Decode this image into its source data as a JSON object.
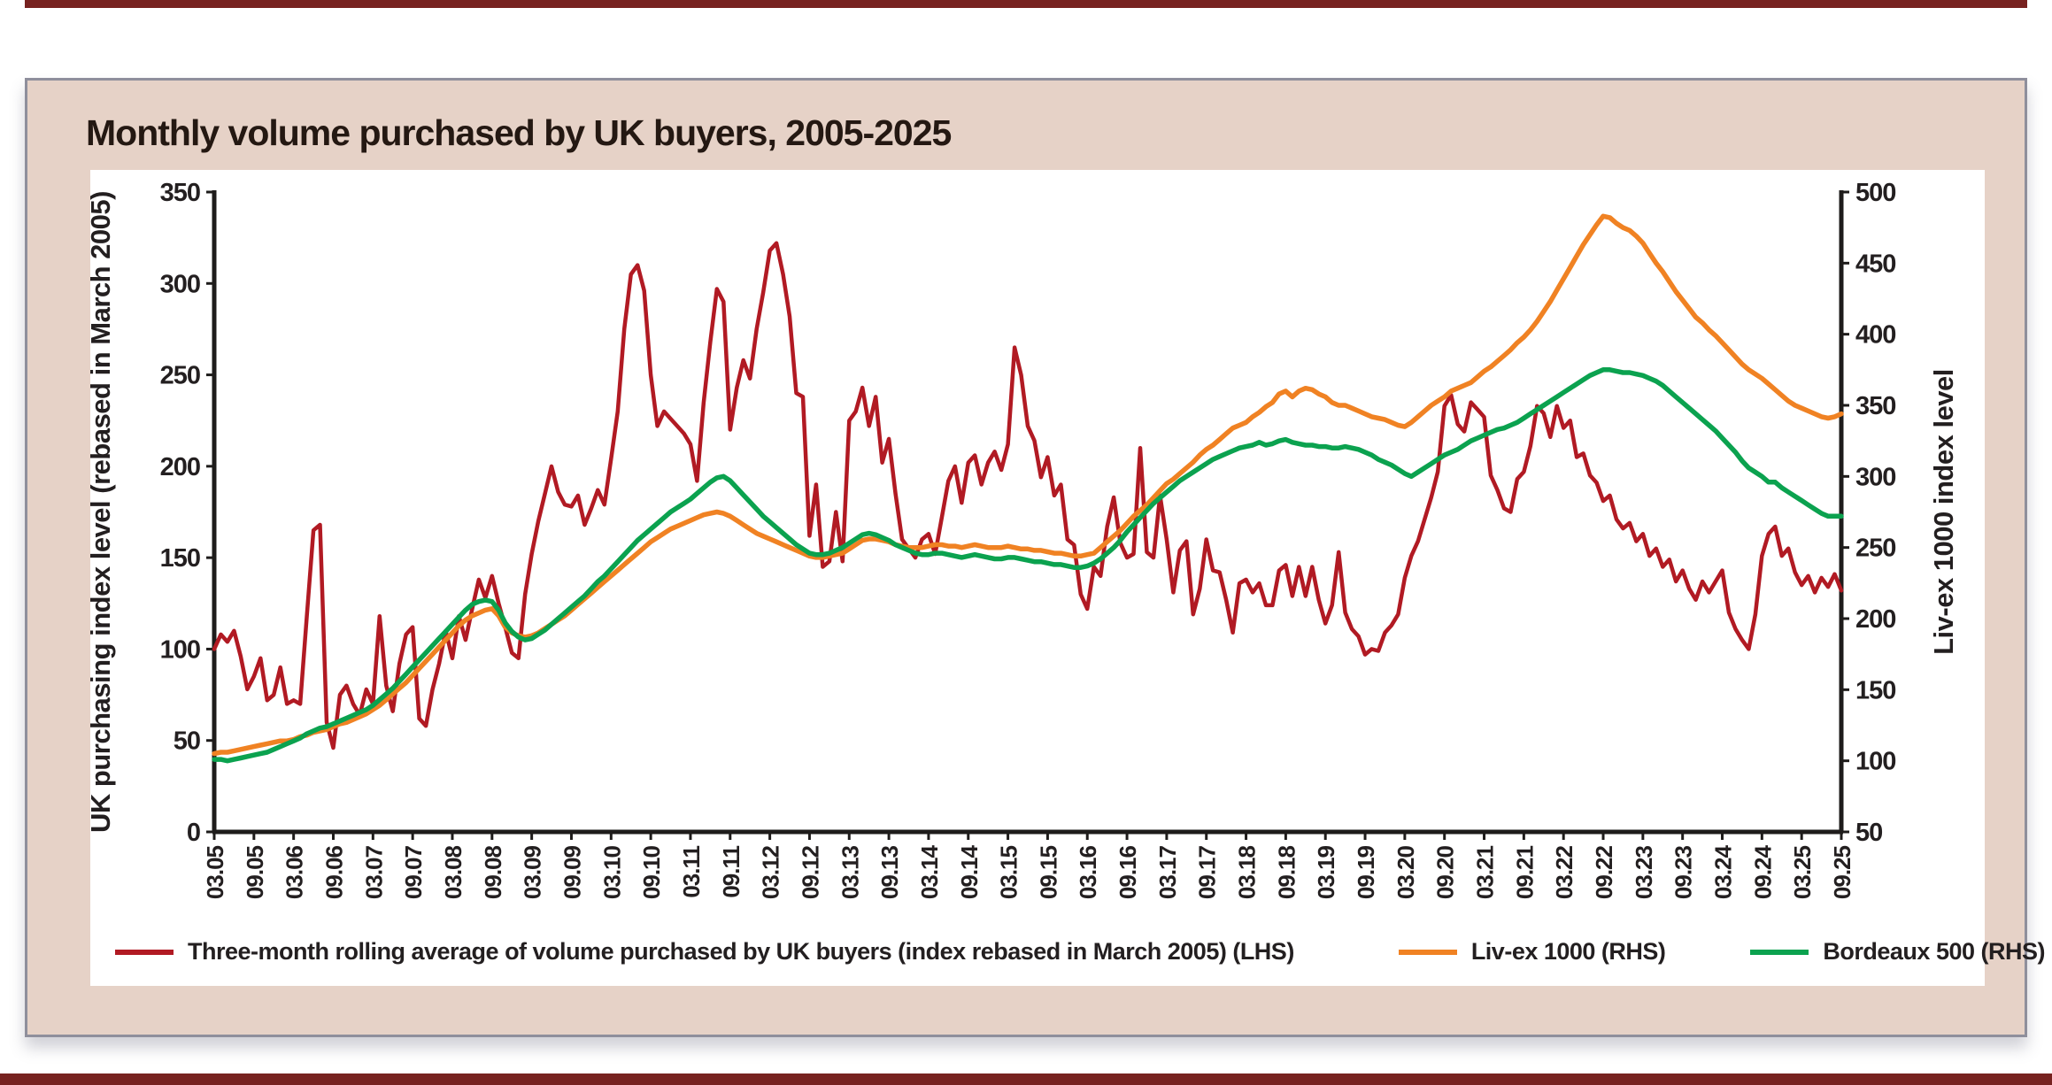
{
  "panel": {
    "title": "Monthly volume purchased by UK buyers, 2005-2025"
  },
  "colors": {
    "accent_rule": "#772220",
    "panel_background": "#e6d2c7",
    "panel_border": "#8f8f9c",
    "axis": "#1e1c1b",
    "series_red": "#b11a23",
    "series_orange": "#f08223",
    "series_green": "#0ba24f"
  },
  "legend": {
    "items": [
      {
        "label": "Three-month rolling average of volume purchased by UK buyers (index rebased in March 2005) (LHS)",
        "color": "#b11a23"
      },
      {
        "label": "Liv-ex 1000 (RHS)",
        "color": "#f08223"
      },
      {
        "label": "Bordeaux 500 (RHS)",
        "color": "#0ba24f"
      }
    ]
  },
  "chart_data": {
    "type": "line",
    "title": "Monthly volume purchased by UK buyers, 2005-2025",
    "x_start": "2005-03",
    "x_interval_months": 1,
    "points_per_series": 247,
    "grid": false,
    "legend_position": "bottom",
    "y_left": {
      "label": "UK purchasing index level (rebased in March 2005)",
      "min": 0,
      "max": 350,
      "ticks": [
        "0",
        "50",
        "100",
        "150",
        "200",
        "250",
        "300",
        "350"
      ]
    },
    "y_right": {
      "label": "Liv-ex 1000 index level",
      "min": 50,
      "max": 500,
      "ticks": [
        "50",
        "100",
        "150",
        "200",
        "250",
        "300",
        "350",
        "400",
        "450",
        "500"
      ]
    },
    "x_tick_labels": [
      "03.05",
      "09.05",
      "03.06",
      "09.06",
      "03.07",
      "09.07",
      "03.08",
      "09.08",
      "03.09",
      "09.09",
      "03.10",
      "09.10",
      "03.11",
      "09.11",
      "03.12",
      "09.12",
      "03.13",
      "09.13",
      "03.14",
      "09.14",
      "03.15",
      "09.15",
      "03.16",
      "09.16",
      "03.17",
      "09.17",
      "03.18",
      "09.18",
      "03.19",
      "09.19",
      "03.20",
      "09.20",
      "03.21",
      "09.21",
      "03.22",
      "09.22",
      "03.23",
      "09.23",
      "03.24",
      "09.24",
      "03.25",
      "09.25"
    ],
    "series": [
      {
        "name": "Three-month rolling average of volume purchased by UK buyers (index rebased in March 2005) (LHS)",
        "axis": "left",
        "color": "#b11a23",
        "values": [
          100,
          108,
          104,
          110,
          96,
          78,
          85,
          95,
          72,
          75,
          90,
          70,
          72,
          70,
          118,
          165,
          168,
          60,
          46,
          75,
          80,
          70,
          64,
          78,
          70,
          118,
          80,
          66,
          92,
          108,
          112,
          62,
          58,
          78,
          92,
          110,
          95,
          118,
          105,
          122,
          138,
          128,
          140,
          125,
          112,
          98,
          95,
          130,
          152,
          170,
          185,
          200,
          186,
          179,
          178,
          184,
          168,
          177,
          187,
          179,
          204,
          230,
          275,
          305,
          310,
          296,
          250,
          222,
          230,
          226,
          222,
          218,
          212,
          192,
          235,
          268,
          297,
          290,
          220,
          243,
          258,
          248,
          275,
          295,
          318,
          322,
          305,
          282,
          240,
          238,
          162,
          190,
          145,
          148,
          175,
          148,
          225,
          230,
          243,
          222,
          238,
          202,
          215,
          185,
          160,
          155,
          150,
          160,
          163,
          152,
          172,
          192,
          200,
          180,
          202,
          206,
          190,
          202,
          208,
          198,
          212,
          265,
          250,
          222,
          214,
          194,
          205,
          184,
          190,
          160,
          157,
          130,
          122,
          145,
          140,
          167,
          183,
          158,
          150,
          152,
          210,
          153,
          150,
          184,
          160,
          131,
          154,
          159,
          119,
          133,
          160,
          143,
          142,
          127,
          109,
          136,
          138,
          131,
          136,
          124,
          124,
          143,
          146,
          129,
          145,
          129,
          145,
          127,
          114,
          124,
          153,
          120,
          111,
          107,
          97,
          100,
          99,
          109,
          113,
          119,
          139,
          151,
          159,
          171,
          183,
          197,
          233,
          239,
          223,
          219,
          235,
          231,
          227,
          195,
          187,
          177,
          175,
          193,
          197,
          211,
          233,
          229,
          216,
          233,
          221,
          225,
          205,
          207,
          195,
          191,
          181,
          184,
          171,
          166,
          169,
          159,
          163,
          151,
          155,
          145,
          149,
          137,
          143,
          133,
          127,
          137,
          131,
          137,
          143,
          120,
          111,
          105,
          100,
          119,
          151,
          163,
          167,
          151,
          155,
          142,
          135,
          140,
          131,
          139,
          134,
          141,
          132
        ]
      },
      {
        "name": "Liv-ex 1000 (RHS)",
        "axis": "right",
        "color": "#f08223",
        "values": [
          105,
          106,
          106,
          107,
          108,
          109,
          110,
          111,
          112,
          113,
          114,
          114,
          115,
          117,
          118,
          120,
          121,
          122,
          124,
          126,
          127,
          129,
          131,
          133,
          136,
          139,
          143,
          147,
          151,
          155,
          160,
          165,
          170,
          175,
          180,
          185,
          190,
          195,
          199,
          202,
          204,
          206,
          207,
          202,
          194,
          190,
          188,
          187,
          188,
          190,
          193,
          196,
          199,
          202,
          206,
          210,
          214,
          218,
          222,
          226,
          230,
          234,
          238,
          242,
          246,
          250,
          254,
          257,
          260,
          263,
          265,
          267,
          269,
          271,
          273,
          274,
          275,
          274,
          272,
          269,
          266,
          263,
          260,
          258,
          256,
          254,
          252,
          250,
          248,
          246,
          244,
          243,
          243,
          244,
          245,
          246,
          249,
          252,
          255,
          256,
          256,
          255,
          254,
          252,
          251,
          250,
          250,
          250,
          251,
          252,
          252,
          251,
          251,
          250,
          251,
          252,
          251,
          250,
          250,
          250,
          251,
          250,
          249,
          249,
          248,
          248,
          247,
          246,
          246,
          245,
          244,
          244,
          245,
          246,
          250,
          254,
          258,
          262,
          267,
          272,
          276,
          280,
          285,
          290,
          295,
          298,
          302,
          306,
          310,
          315,
          319,
          322,
          326,
          330,
          334,
          336,
          338,
          342,
          345,
          349,
          352,
          358,
          360,
          356,
          360,
          362,
          361,
          358,
          356,
          352,
          350,
          350,
          348,
          346,
          344,
          342,
          341,
          340,
          338,
          336,
          335,
          338,
          342,
          346,
          350,
          353,
          356,
          360,
          362,
          364,
          366,
          370,
          374,
          377,
          381,
          385,
          389,
          394,
          398,
          403,
          409,
          416,
          423,
          431,
          439,
          447,
          455,
          463,
          470,
          477,
          483,
          482,
          478,
          475,
          473,
          469,
          464,
          457,
          450,
          444,
          437,
          430,
          424,
          418,
          412,
          408,
          403,
          399,
          394,
          389,
          384,
          379,
          375,
          372,
          369,
          365,
          361,
          357,
          353,
          350,
          348,
          346,
          344,
          342,
          341,
          342,
          344
        ]
      },
      {
        "name": "Bordeaux 500 (RHS)",
        "axis": "right",
        "color": "#0ba24f",
        "values": [
          101,
          101,
          100,
          101,
          102,
          103,
          104,
          105,
          106,
          108,
          110,
          112,
          114,
          116,
          119,
          121,
          123,
          124,
          126,
          128,
          130,
          132,
          134,
          136,
          139,
          143,
          147,
          151,
          156,
          161,
          166,
          171,
          176,
          181,
          186,
          191,
          196,
          201,
          206,
          210,
          212,
          213,
          212,
          206,
          197,
          191,
          187,
          185,
          186,
          189,
          192,
          196,
          200,
          204,
          208,
          212,
          216,
          221,
          226,
          230,
          235,
          240,
          245,
          250,
          255,
          259,
          263,
          267,
          271,
          275,
          278,
          281,
          284,
          288,
          292,
          296,
          299,
          300,
          297,
          292,
          287,
          282,
          277,
          272,
          268,
          264,
          260,
          256,
          252,
          249,
          246,
          245,
          245,
          246,
          248,
          250,
          253,
          256,
          259,
          260,
          259,
          257,
          255,
          252,
          250,
          248,
          246,
          245,
          245,
          246,
          246,
          245,
          244,
          243,
          244,
          245,
          244,
          243,
          242,
          242,
          243,
          243,
          242,
          241,
          240,
          240,
          239,
          238,
          238,
          237,
          236,
          236,
          237,
          239,
          242,
          246,
          250,
          255,
          261,
          266,
          271,
          276,
          281,
          285,
          289,
          293,
          297,
          300,
          303,
          306,
          309,
          312,
          314,
          316,
          318,
          320,
          321,
          322,
          324,
          322,
          323,
          325,
          326,
          324,
          323,
          322,
          322,
          321,
          321,
          320,
          320,
          321,
          320,
          319,
          317,
          315,
          312,
          310,
          308,
          305,
          302,
          300,
          303,
          306,
          309,
          312,
          315,
          317,
          319,
          322,
          325,
          327,
          329,
          331,
          333,
          334,
          336,
          338,
          341,
          344,
          347,
          350,
          353,
          356,
          359,
          362,
          365,
          368,
          371,
          373,
          375,
          375,
          374,
          373,
          373,
          372,
          371,
          369,
          367,
          364,
          360,
          356,
          352,
          348,
          344,
          340,
          336,
          332,
          327,
          322,
          317,
          311,
          306,
          303,
          300,
          296,
          296,
          292,
          289,
          286,
          283,
          280,
          277,
          274,
          272,
          272,
          272
        ]
      }
    ]
  }
}
